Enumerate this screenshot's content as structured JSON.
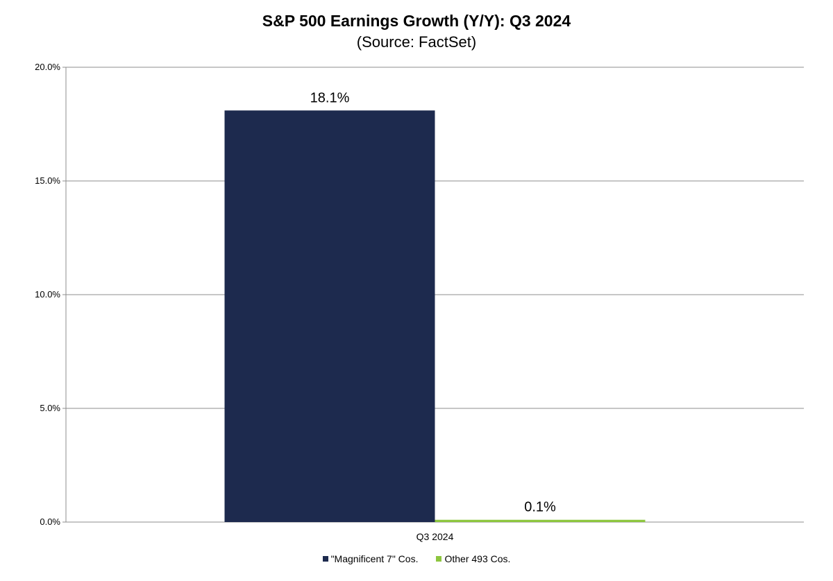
{
  "chart_data": {
    "type": "bar",
    "title": "S&P 500 Earnings Growth (Y/Y): Q3 2024",
    "subtitle": "(Source: FactSet)",
    "categories": [
      "Q3 2024"
    ],
    "series": [
      {
        "name": "\"Magnificent 7\" Cos.",
        "values": [
          18.1
        ],
        "labels": [
          "18.1%"
        ],
        "color": "#1d2a4e"
      },
      {
        "name": "Other 493 Cos.",
        "values": [
          0.1
        ],
        "labels": [
          "0.1%"
        ],
        "color": "#8dc63f"
      }
    ],
    "ylim": [
      0,
      20
    ],
    "yticks": [
      {
        "value": 0,
        "label": "0.0%"
      },
      {
        "value": 5,
        "label": "5.0%"
      },
      {
        "value": 10,
        "label": "10.0%"
      },
      {
        "value": 15,
        "label": "15.0%"
      },
      {
        "value": 20,
        "label": "20.0%"
      }
    ],
    "xlabel": "",
    "ylabel": "",
    "grid": true,
    "legend_position": "bottom"
  }
}
